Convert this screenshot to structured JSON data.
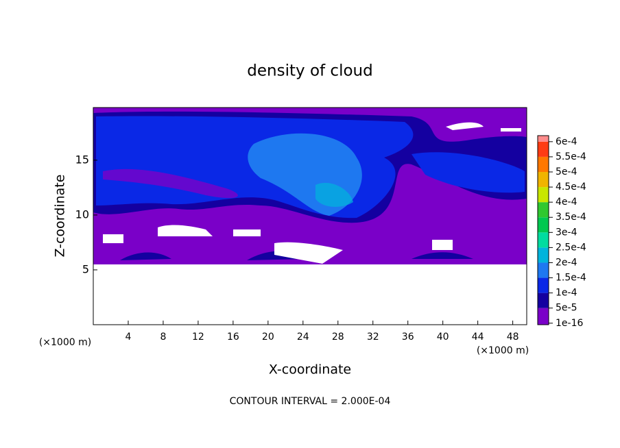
{
  "chart_data": {
    "type": "contour",
    "title": "density of cloud",
    "x_label": "X-coordinate",
    "y_label": "Z-coordinate",
    "y_unit_label": "(×1000 m)",
    "x_unit_label": "(×1000 m)",
    "footer": "CONTOUR INTERVAL = 2.000E-04",
    "xlim": [
      0,
      49.6
    ],
    "xticks": [
      4,
      8,
      12,
      16,
      20,
      24,
      28,
      32,
      36,
      40,
      44,
      48
    ],
    "ylim": [
      0,
      19.8
    ],
    "yticks": [
      5,
      10,
      15
    ],
    "colorbar": {
      "ticks": [
        {
          "value": 1e-16,
          "label": "1e-16"
        },
        {
          "value": 5e-05,
          "label": "5e-5"
        },
        {
          "value": 0.0001,
          "label": "1e-4"
        },
        {
          "value": 0.00015,
          "label": "1.5e-4"
        },
        {
          "value": 0.0002,
          "label": "2e-4"
        },
        {
          "value": 0.00025,
          "label": "2.5e-4"
        },
        {
          "value": 0.0003,
          "label": "3e-4"
        },
        {
          "value": 0.00035,
          "label": "3.5e-4"
        },
        {
          "value": 0.0004,
          "label": "4e-4"
        },
        {
          "value": 0.00045,
          "label": "4.5e-4"
        },
        {
          "value": 0.0005,
          "label": "5e-4"
        },
        {
          "value": 0.00055,
          "label": "5.5e-4"
        },
        {
          "value": 0.0006,
          "label": "6e-4"
        }
      ],
      "colors": [
        "#7a00c8",
        "#1400a0",
        "#0a28e6",
        "#1e78f0",
        "#00b4dc",
        "#00dca0",
        "#00c850",
        "#30c830",
        "#c8e600",
        "#f0b400",
        "#ff7800",
        "#ff3c14",
        "#ff8c8c"
      ]
    }
  }
}
